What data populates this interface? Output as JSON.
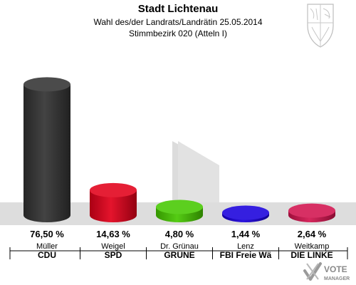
{
  "header": {
    "title": "Stadt Lichtenau",
    "subtitle": "Wahl des/der Landrats/Landrätin 25.05.2014",
    "district": "Stimmbezirk 020 (Atteln I)"
  },
  "logo": {
    "line1": "VOTE",
    "line2": "MANAGER"
  },
  "chart_data": {
    "type": "bar",
    "title": "Stadt Lichtenau",
    "subtitle": "Wahl des/der Landrats/Landrätin 25.05.2014 — Stimmbezirk 020 (Atteln I)",
    "ylim": [
      0,
      100
    ],
    "candidates": [
      "Müller",
      "Weigel",
      "Dr. Grünau",
      "Lenz",
      "Weitkamp"
    ],
    "categories": [
      "CDU",
      "SPD",
      "GRÜNE",
      "FBI Freie Wä",
      "DIE LINKE"
    ],
    "values": [
      76.5,
      14.63,
      4.8,
      1.44,
      2.64
    ],
    "value_labels": [
      "76,50 %",
      "14,63 %",
      "4,80 %",
      "1,44 %",
      "2,64 %"
    ],
    "colors": [
      "#333333",
      "#e2001a",
      "#46c800",
      "#1a00dc",
      "#d2144f"
    ]
  }
}
